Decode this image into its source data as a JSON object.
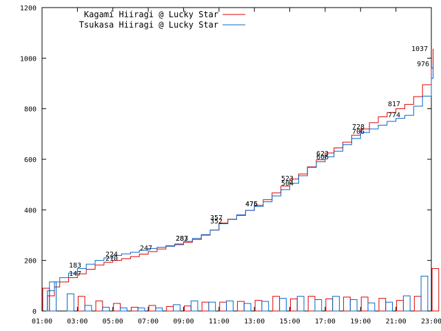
{
  "chart_data": {
    "type": "line",
    "ylim": [
      0,
      1200
    ],
    "y_ticks": [
      0,
      200,
      400,
      600,
      800,
      1000,
      1200
    ],
    "xlim": [
      1,
      23
    ],
    "x_ticks": [
      "01:00",
      "03:00",
      "05:00",
      "07:00",
      "09:00",
      "11:00",
      "13:00",
      "15:00",
      "17:00",
      "19:00",
      "21:00",
      "23:00"
    ],
    "grid": false,
    "legend_position": "top-left",
    "series": [
      {
        "name": "Kagami Hiiragi @ Lucky Star",
        "color": "#dd0000",
        "cumulative": [
          [
            1.0,
            0
          ],
          [
            1.3,
            60
          ],
          [
            1.7,
            95
          ],
          [
            2.0,
            115
          ],
          [
            2.5,
            132
          ],
          [
            3.0,
            147
          ],
          [
            3.5,
            165
          ],
          [
            4.0,
            182
          ],
          [
            4.5,
            193
          ],
          [
            5.0,
            200
          ],
          [
            5.5,
            207
          ],
          [
            6.0,
            215
          ],
          [
            6.5,
            225
          ],
          [
            7.0,
            235
          ],
          [
            7.5,
            245
          ],
          [
            8.0,
            258
          ],
          [
            8.5,
            265
          ],
          [
            9.0,
            272
          ],
          [
            9.5,
            283
          ],
          [
            10.0,
            300
          ],
          [
            10.5,
            320
          ],
          [
            11.0,
            348
          ],
          [
            11.5,
            363
          ],
          [
            12.0,
            378
          ],
          [
            12.5,
            398
          ],
          [
            13.0,
            418
          ],
          [
            13.5,
            440
          ],
          [
            14.0,
            467
          ],
          [
            14.5,
            494
          ],
          [
            15.0,
            522
          ],
          [
            15.5,
            542
          ],
          [
            16.0,
            570
          ],
          [
            16.5,
            598
          ],
          [
            17.0,
            625
          ],
          [
            17.5,
            645
          ],
          [
            18.0,
            668
          ],
          [
            18.5,
            695
          ],
          [
            19.0,
            720
          ],
          [
            19.5,
            745
          ],
          [
            20.0,
            768
          ],
          [
            20.5,
            785
          ],
          [
            21.0,
            800
          ],
          [
            21.5,
            817
          ],
          [
            22.0,
            848
          ],
          [
            22.5,
            895
          ],
          [
            23.0,
            960
          ],
          [
            23.1,
            1037
          ]
        ],
        "hourly": [
          90,
          0,
          58,
          40,
          30,
          15,
          22,
          18,
          20,
          35,
          35,
          38,
          42,
          58,
          48,
          58,
          48,
          55,
          55,
          50,
          42,
          58,
          168
        ]
      },
      {
        "name": "Tsukasa Hiiragi @ Lucky Star",
        "color": "#0066cc",
        "cumulative": [
          [
            1.0,
            0
          ],
          [
            1.3,
            80
          ],
          [
            1.7,
            115
          ],
          [
            2.0,
            132
          ],
          [
            2.5,
            150
          ],
          [
            3.0,
            168
          ],
          [
            3.5,
            185
          ],
          [
            4.0,
            200
          ],
          [
            4.5,
            210
          ],
          [
            5.0,
            220
          ],
          [
            5.5,
            226
          ],
          [
            6.0,
            232
          ],
          [
            6.5,
            240
          ],
          [
            7.0,
            247
          ],
          [
            7.5,
            252
          ],
          [
            8.0,
            256
          ],
          [
            8.5,
            262
          ],
          [
            9.0,
            275
          ],
          [
            9.5,
            287
          ],
          [
            10.0,
            302
          ],
          [
            10.5,
            320
          ],
          [
            11.0,
            345
          ],
          [
            11.5,
            362
          ],
          [
            12.0,
            380
          ],
          [
            12.5,
            398
          ],
          [
            13.0,
            414
          ],
          [
            13.5,
            432
          ],
          [
            14.0,
            455
          ],
          [
            14.5,
            480
          ],
          [
            15.0,
            505
          ],
          [
            15.5,
            535
          ],
          [
            16.0,
            568
          ],
          [
            16.5,
            590
          ],
          [
            17.0,
            610
          ],
          [
            17.5,
            632
          ],
          [
            18.0,
            658
          ],
          [
            18.5,
            682
          ],
          [
            19.0,
            706
          ],
          [
            19.5,
            720
          ],
          [
            20.0,
            735
          ],
          [
            20.5,
            750
          ],
          [
            21.0,
            762
          ],
          [
            21.5,
            774
          ],
          [
            22.0,
            810
          ],
          [
            22.5,
            850
          ],
          [
            23.0,
            920
          ],
          [
            23.1,
            976
          ]
        ],
        "hourly": [
          115,
          68,
          22,
          15,
          12,
          12,
          12,
          25,
          40,
          35,
          40,
          30,
          38,
          50,
          58,
          45,
          58,
          45,
          32,
          35,
          60,
          138,
          0
        ]
      }
    ],
    "annotations": [
      "183",
      "147",
      "224",
      "210",
      "247",
      "283",
      "287",
      "352",
      "357",
      "475",
      "476",
      "523",
      "504",
      "623",
      "606",
      "728",
      "706",
      "817",
      "774",
      "1037",
      "976"
    ]
  }
}
